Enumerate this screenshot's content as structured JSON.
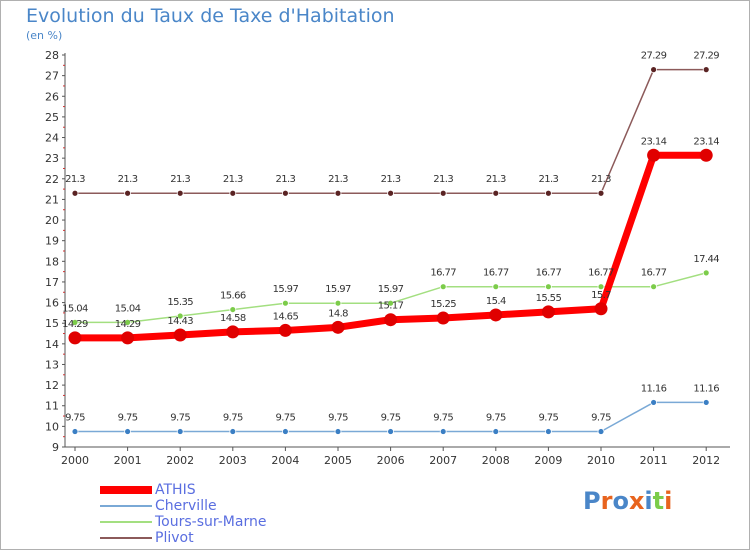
{
  "chart_data": {
    "type": "line",
    "title": "Evolution du Taux de Taxe d'Habitation",
    "subtitle": "(en %)",
    "x": [
      "2000",
      "2001",
      "2002",
      "2003",
      "2004",
      "2005",
      "2006",
      "2007",
      "2008",
      "2009",
      "2010",
      "2011",
      "2012"
    ],
    "ylim": [
      9,
      28
    ],
    "grid": false,
    "legend_position": "bottom-left",
    "series": [
      {
        "name": "ATHIS",
        "color": "#ff0000",
        "marker": "#e00000",
        "values": [
          14.29,
          14.29,
          14.43,
          14.58,
          14.65,
          14.8,
          15.17,
          15.25,
          15.4,
          15.55,
          15.7,
          23.14,
          23.14
        ]
      },
      {
        "name": "Cherville",
        "color": "#7aa9d6",
        "marker": "#3b7fc4",
        "values": [
          9.75,
          9.75,
          9.75,
          9.75,
          9.75,
          9.75,
          9.75,
          9.75,
          9.75,
          9.75,
          9.75,
          11.16,
          11.16
        ]
      },
      {
        "name": "Tours-sur-Marne",
        "color": "#a3df80",
        "marker": "#7ccc4a",
        "values": [
          15.04,
          15.04,
          15.35,
          15.66,
          15.97,
          15.97,
          15.97,
          16.77,
          16.77,
          16.77,
          16.77,
          16.77,
          17.44
        ]
      },
      {
        "name": "Plivot",
        "color": "#8c5a5a",
        "marker": "#5a2323",
        "values": [
          21.3,
          21.3,
          21.3,
          21.3,
          21.3,
          21.3,
          21.3,
          21.3,
          21.3,
          21.3,
          21.3,
          27.29,
          27.29
        ]
      }
    ],
    "data_labels": {
      "ATHIS": [
        "14.29",
        "14.29",
        "14.43",
        "14.58",
        "14.65",
        "14.8",
        "15.17",
        "15.25",
        "15.4",
        "15.55",
        "15.7",
        "23.14",
        "23.14"
      ],
      "Cherville": [
        "9.75",
        "9.75",
        "9.75",
        "9.75",
        "9.75",
        "9.75",
        "9.75",
        "9.75",
        "9.75",
        "9.75",
        "9.75",
        "11.16",
        "11.16"
      ],
      "Tours-sur-Marne": [
        "15.04",
        "15.04",
        "15.35",
        "15.66",
        "15.97",
        "15.97",
        "15.97",
        "16.77",
        "16.77",
        "16.77",
        "16.77",
        "16.77",
        "17.44"
      ],
      "Plivot": [
        "21.3",
        "21.3",
        "21.3",
        "21.3",
        "21.3",
        "21.3",
        "21.3",
        "21.3",
        "21.3",
        "21.3",
        "21.3",
        "27.29",
        "27.29"
      ]
    }
  },
  "logo": {
    "text": "Proxiti",
    "colors": [
      "#4a86c8",
      "#e8641e",
      "#4a86c8",
      "#e8641e",
      "#4a86c8",
      "#7ccc4a",
      "#e8641e"
    ]
  }
}
